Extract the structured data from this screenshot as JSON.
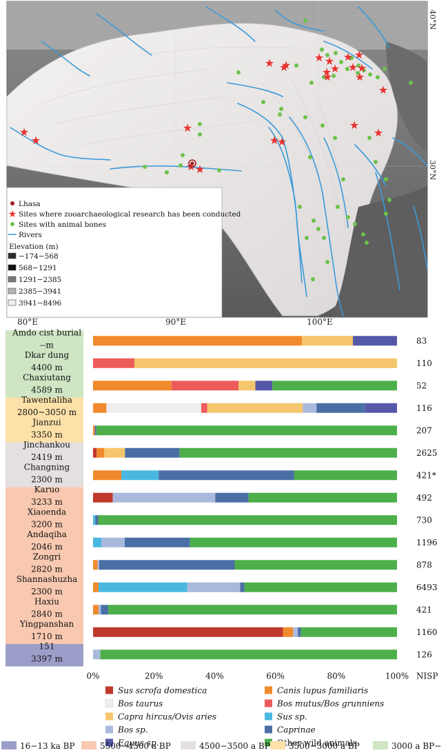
{
  "map": {
    "lat_labels": [
      "40°N",
      "30°N"
    ],
    "lon_labels": [
      "80°E",
      "90°E",
      "100°E"
    ],
    "legend": {
      "items": [
        {
          "label": "Lhasa",
          "icon": "lhasa-marker-icon"
        },
        {
          "label": "Sites where zooarchaeological research has been conducted",
          "icon": "red-star-icon"
        },
        {
          "label": "Sites with animal bones",
          "icon": "green-dot-icon"
        },
        {
          "label": "Rivers",
          "icon": "river-line-icon"
        }
      ],
      "elevation_title": "Elevation (m)",
      "elevation_classes": [
        {
          "label": "−174−568",
          "color": "#2a2a2a"
        },
        {
          "label": "568−1291",
          "color": "#111111"
        },
        {
          "label": "1291−2385",
          "color": "#7a7a7a"
        },
        {
          "label": "2385−3941",
          "color": "#b5b5b5"
        },
        {
          "label": "3941−8496",
          "color": "#f2efef"
        }
      ]
    },
    "colors": {
      "star": "#e8322e",
      "dot": "#6cc24a",
      "river": "#3a9ad9",
      "lhasa": "#9e1b1b"
    }
  },
  "chart_data": {
    "type": "bar",
    "stacked": true,
    "orientation": "horizontal",
    "categories": [
      "Sus scrofa domestica",
      "Canis lupus familiaris",
      "Bos taurus",
      "Bos mutus/Bos grunniens",
      "Capra hircus/Ovis aries",
      "Sus sp.",
      "Bos sp.",
      "Caprinae",
      "Equus sp.",
      "Other wild animals"
    ],
    "category_italic": [
      true,
      true,
      true,
      true,
      true,
      true,
      true,
      true,
      true,
      false
    ],
    "category_colors": [
      "#c0392b",
      "#f08a2c",
      "#eeeeee",
      "#ee5b5b",
      "#f5c66b",
      "#4ab8e0",
      "#a9b9dc",
      "#4a6fa5",
      "#5558a8",
      "#4daf4a"
    ],
    "rows": [
      {
        "site": "Amdo cist burial",
        "elevation": "--m",
        "nisp": "83",
        "period": 4,
        "values": [
          0,
          68.7,
          0,
          0,
          16.8,
          0,
          0,
          0,
          14.5,
          0
        ]
      },
      {
        "site": "Dkar dung",
        "elevation": "4400 m",
        "nisp": "110",
        "period": 4,
        "values": [
          0,
          0,
          0,
          13.6,
          86.4,
          0,
          0,
          0,
          0,
          0
        ]
      },
      {
        "site": "Chaxiutang",
        "elevation": "4589 m",
        "nisp": "52",
        "period": 4,
        "values": [
          0,
          25.8,
          0,
          22.1,
          5.5,
          0,
          0,
          0,
          5.6,
          41.0
        ]
      },
      {
        "site": "Tawentaliha",
        "elevation": "2800~3050 m",
        "nisp": "116",
        "period": 3,
        "values": [
          0,
          4.4,
          31.2,
          2.0,
          31.4,
          0,
          4.5,
          16.0,
          10.5,
          0
        ]
      },
      {
        "site": "Jianzui",
        "elevation": "3350 m",
        "nisp": "207",
        "period": 3,
        "values": [
          0,
          0.6,
          0,
          0,
          0,
          0,
          0,
          0.5,
          0,
          98.9
        ]
      },
      {
        "site": "Jinchankou",
        "elevation": "2419 m",
        "nisp": "2625",
        "period": 2,
        "values": [
          1.2,
          2.5,
          0,
          0,
          6.8,
          0,
          0,
          18.0,
          0,
          71.5
        ]
      },
      {
        "site": "Changning",
        "elevation": "2300 m",
        "nisp": "421*",
        "period": 2,
        "values": [
          0,
          9.3,
          0,
          0,
          0,
          12.3,
          0,
          44.6,
          0,
          33.8
        ]
      },
      {
        "site": "Karuo",
        "elevation": "3233 m",
        "nisp": "492",
        "period": 1,
        "values": [
          6.5,
          0,
          0,
          0,
          0,
          0,
          33.7,
          11.0,
          0,
          48.8
        ]
      },
      {
        "site": "Xiaoenda",
        "elevation": "3200 m",
        "nisp": "730",
        "period": 1,
        "values": [
          0,
          0,
          0,
          0,
          0,
          0.8,
          0,
          0.9,
          0,
          98.3
        ]
      },
      {
        "site": "Andaqiha",
        "elevation": "2046 m",
        "nisp": "1196",
        "period": 1,
        "values": [
          0,
          0,
          0,
          0,
          0,
          2.8,
          7.6,
          21.5,
          0,
          68.1
        ]
      },
      {
        "site": "Zongri",
        "elevation": "2820 m",
        "nisp": "878",
        "period": 1,
        "values": [
          0,
          1.5,
          0,
          0,
          0,
          0,
          0.5,
          44.6,
          0,
          53.4
        ]
      },
      {
        "site": "Shannashuzha",
        "elevation": "2300 m",
        "nisp": "6493",
        "period": 1,
        "values": [
          0,
          1.8,
          0,
          0,
          0,
          29.2,
          17.4,
          1.4,
          0,
          50.2
        ]
      },
      {
        "site": "Haxiu",
        "elevation": "2840 m",
        "nisp": "421",
        "period": 1,
        "values": [
          0,
          1.8,
          0,
          0,
          0,
          0,
          0.8,
          2.4,
          0,
          95.0
        ]
      },
      {
        "site": "Yingpanshan",
        "elevation": "1710 m",
        "nisp": "1160",
        "period": 1,
        "values": [
          62.5,
          3.3,
          0,
          0,
          0,
          0,
          1.6,
          1.0,
          0,
          31.6
        ]
      },
      {
        "site": "151",
        "elevation": "3397 m",
        "nisp": "126",
        "period": 0,
        "values": [
          0,
          0,
          0,
          0,
          0,
          0,
          2.4,
          0,
          0,
          97.6
        ]
      }
    ],
    "x_ticks": [
      "0%",
      "20%",
      "40%",
      "60%",
      "80%",
      "100%"
    ],
    "xlim": [
      0,
      100
    ],
    "right_header": "NISP",
    "periods": [
      {
        "label": "16−13 ka BP",
        "color": "#9c9dc9"
      },
      {
        "label": "5500−4500 a BP",
        "color": "#f8c9b0"
      },
      {
        "label": "4500−3500 a BP",
        "color": "#e4e0e0"
      },
      {
        "label": "3500−3000 a BP",
        "color": "#fde1a9"
      },
      {
        "label": "3000 a BP−",
        "color": "#cfe5c4"
      }
    ]
  }
}
